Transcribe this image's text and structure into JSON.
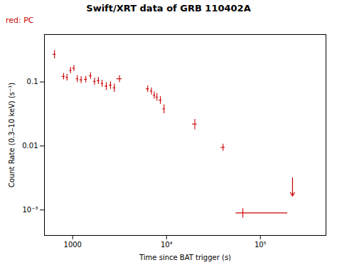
{
  "chart_data": {
    "type": "scatter",
    "title": "Swift/XRT data of GRB 110402A",
    "xlabel": "Time since BAT trigger (s)",
    "ylabel": "Count Rate (0.3–10 keV) (s⁻¹)",
    "annotation": "red: PC",
    "color": "#cc0000",
    "marker": "plus",
    "log": true,
    "grid": false,
    "xlim": [
      500,
      500000
    ],
    "ylim": [
      0.0004,
      0.55
    ],
    "xticks": [
      1000,
      {
        "value": 10000,
        "label": "10⁴"
      },
      {
        "value": 100000,
        "label": "10⁵"
      }
    ],
    "yticks": [
      {
        "value": 0.001,
        "label": "10⁻³"
      },
      0.01,
      0.1
    ],
    "points": [
      {
        "x": 640,
        "y": 0.27,
        "xerr_lo": 25,
        "xerr_hi": 25,
        "yerr_lo": 0.04,
        "yerr_hi": 0.04
      },
      {
        "x": 800,
        "y": 0.122,
        "xerr_lo": 30,
        "xerr_hi": 30,
        "yerr_lo": 0.014,
        "yerr_hi": 0.014
      },
      {
        "x": 870,
        "y": 0.118,
        "xerr_lo": 25,
        "xerr_hi": 25,
        "yerr_lo": 0.014,
        "yerr_hi": 0.014
      },
      {
        "x": 950,
        "y": 0.152,
        "xerr_lo": 25,
        "xerr_hi": 25,
        "yerr_lo": 0.017,
        "yerr_hi": 0.017
      },
      {
        "x": 1030,
        "y": 0.163,
        "xerr_lo": 30,
        "xerr_hi": 30,
        "yerr_lo": 0.017,
        "yerr_hi": 0.017
      },
      {
        "x": 1120,
        "y": 0.112,
        "xerr_lo": 30,
        "xerr_hi": 30,
        "yerr_lo": 0.014,
        "yerr_hi": 0.014
      },
      {
        "x": 1230,
        "y": 0.108,
        "xerr_lo": 40,
        "xerr_hi": 40,
        "yerr_lo": 0.013,
        "yerr_hi": 0.013
      },
      {
        "x": 1380,
        "y": 0.11,
        "xerr_lo": 50,
        "xerr_hi": 50,
        "yerr_lo": 0.013,
        "yerr_hi": 0.013
      },
      {
        "x": 1550,
        "y": 0.125,
        "xerr_lo": 50,
        "xerr_hi": 50,
        "yerr_lo": 0.015,
        "yerr_hi": 0.015
      },
      {
        "x": 1710,
        "y": 0.102,
        "xerr_lo": 55,
        "xerr_hi": 55,
        "yerr_lo": 0.013,
        "yerr_hi": 0.013
      },
      {
        "x": 1880,
        "y": 0.105,
        "xerr_lo": 60,
        "xerr_hi": 60,
        "yerr_lo": 0.013,
        "yerr_hi": 0.013
      },
      {
        "x": 2060,
        "y": 0.095,
        "xerr_lo": 60,
        "xerr_hi": 60,
        "yerr_lo": 0.012,
        "yerr_hi": 0.012
      },
      {
        "x": 2280,
        "y": 0.086,
        "xerr_lo": 80,
        "xerr_hi": 80,
        "yerr_lo": 0.012,
        "yerr_hi": 0.012
      },
      {
        "x": 2530,
        "y": 0.089,
        "xerr_lo": 80,
        "xerr_hi": 80,
        "yerr_lo": 0.012,
        "yerr_hi": 0.012
      },
      {
        "x": 2780,
        "y": 0.081,
        "xerr_lo": 85,
        "xerr_hi": 85,
        "yerr_lo": 0.012,
        "yerr_hi": 0.012
      },
      {
        "x": 3150,
        "y": 0.112,
        "xerr_lo": 200,
        "xerr_hi": 200,
        "yerr_lo": 0.014,
        "yerr_hi": 0.014
      },
      {
        "x": 6300,
        "y": 0.078,
        "xerr_lo": 250,
        "xerr_hi": 250,
        "yerr_lo": 0.009,
        "yerr_hi": 0.009
      },
      {
        "x": 6900,
        "y": 0.072,
        "xerr_lo": 200,
        "xerr_hi": 200,
        "yerr_lo": 0.009,
        "yerr_hi": 0.009
      },
      {
        "x": 7400,
        "y": 0.062,
        "xerr_lo": 200,
        "xerr_hi": 200,
        "yerr_lo": 0.008,
        "yerr_hi": 0.008
      },
      {
        "x": 7900,
        "y": 0.058,
        "xerr_lo": 200,
        "xerr_hi": 200,
        "yerr_lo": 0.008,
        "yerr_hi": 0.008
      },
      {
        "x": 8600,
        "y": 0.052,
        "xerr_lo": 280,
        "xerr_hi": 280,
        "yerr_lo": 0.007,
        "yerr_hi": 0.007
      },
      {
        "x": 9400,
        "y": 0.038,
        "xerr_lo": 280,
        "xerr_hi": 280,
        "yerr_lo": 0.006,
        "yerr_hi": 0.006
      },
      {
        "x": 20000,
        "y": 0.022,
        "xerr_lo": 1200,
        "xerr_hi": 1200,
        "yerr_lo": 0.004,
        "yerr_hi": 0.004
      },
      {
        "x": 40000,
        "y": 0.0095,
        "xerr_lo": 2000,
        "xerr_hi": 2000,
        "yerr_lo": 0.0012,
        "yerr_hi": 0.0012
      },
      {
        "x": 65000,
        "y": 0.0009,
        "xerr_lo": 10000,
        "xerr_hi": 130000,
        "yerr_lo": 0.00015,
        "yerr_hi": 0.00015
      }
    ],
    "upper_limit": {
      "x": 220000,
      "y": 0.0032,
      "y_arrow_tip": 0.00165
    }
  }
}
